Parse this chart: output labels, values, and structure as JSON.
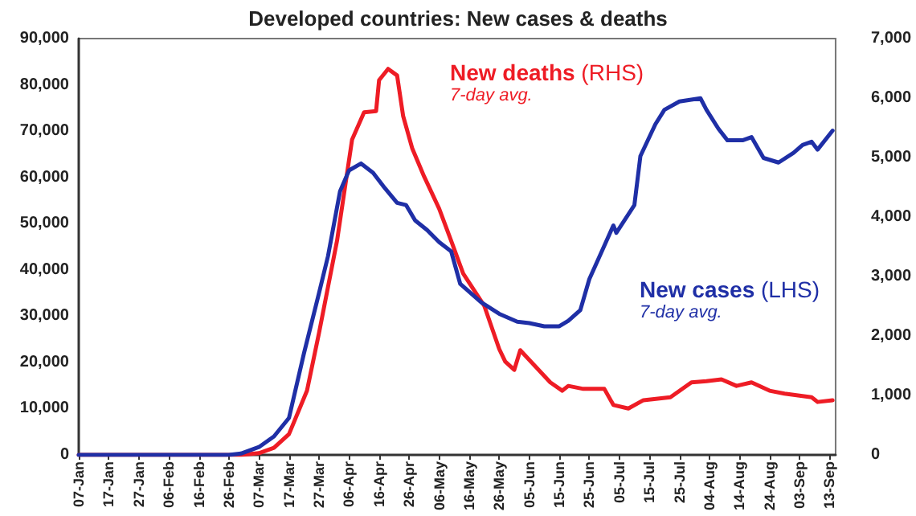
{
  "chart_data": {
    "type": "line",
    "title": "Developed countries: New cases & deaths",
    "annotations": [
      "7-day avg.",
      "7-day avg."
    ],
    "xlim": [
      "--01-07",
      "--09-15"
    ],
    "xticks": [
      {
        "value": "--01-07",
        "label": "07-Jan"
      },
      {
        "value": "--01-17",
        "label": "17-Jan"
      },
      {
        "value": "--01-27",
        "label": "27-Jan"
      },
      {
        "value": "--02-06",
        "label": "06-Feb"
      },
      {
        "value": "--02-16",
        "label": "16-Feb"
      },
      {
        "value": "--02-26",
        "label": "26-Feb"
      },
      {
        "value": "--03-07",
        "label": "07-Mar"
      },
      {
        "value": "--03-17",
        "label": "17-Mar"
      },
      {
        "value": "--03-27",
        "label": "27-Mar"
      },
      {
        "value": "--04-06",
        "label": "06-Apr"
      },
      {
        "value": "--04-16",
        "label": "16-Apr"
      },
      {
        "value": "--04-26",
        "label": "26-Apr"
      },
      {
        "value": "--05-06",
        "label": "06-May"
      },
      {
        "value": "--05-16",
        "label": "16-May"
      },
      {
        "value": "--05-26",
        "label": "26-May"
      },
      {
        "value": "--06-05",
        "label": "05-Jun"
      },
      {
        "value": "--06-15",
        "label": "15-Jun"
      },
      {
        "value": "--06-25",
        "label": "25-Jun"
      },
      {
        "value": "--07-05",
        "label": "05-Jul"
      },
      {
        "value": "--07-15",
        "label": "15-Jul"
      },
      {
        "value": "--07-25",
        "label": "25-Jul"
      },
      {
        "value": "--08-04",
        "label": "04-Aug"
      },
      {
        "value": "--08-14",
        "label": "14-Aug"
      },
      {
        "value": "--08-24",
        "label": "24-Aug"
      },
      {
        "value": "--09-03",
        "label": "03-Sep"
      },
      {
        "value": "--09-13",
        "label": "13-Sep"
      }
    ],
    "ylim": [
      0,
      90000
    ],
    "yticks": [
      {
        "value": 0,
        "label": "0"
      },
      {
        "value": 10000,
        "label": "10,000"
      },
      {
        "value": 20000,
        "label": "20,000"
      },
      {
        "value": 30000,
        "label": "30,000"
      },
      {
        "value": 40000,
        "label": "40,000"
      },
      {
        "value": 50000,
        "label": "50,000"
      },
      {
        "value": 60000,
        "label": "60,000"
      },
      {
        "value": 70000,
        "label": "70,000"
      },
      {
        "value": 80000,
        "label": "80,000"
      },
      {
        "value": 90000,
        "label": "90,000"
      }
    ],
    "y2lim": [
      0,
      7000
    ],
    "y2ticks": [
      {
        "value": 0,
        "label": "0"
      },
      {
        "value": 1000,
        "label": "1,000"
      },
      {
        "value": 2000,
        "label": "2,000"
      },
      {
        "value": 3000,
        "label": "3,000"
      },
      {
        "value": 4000,
        "label": "4,000"
      },
      {
        "value": 5000,
        "label": "5,000"
      },
      {
        "value": 6000,
        "label": "6,000"
      },
      {
        "value": 7000,
        "label": "7,000"
      }
    ],
    "grid": false,
    "legend": false,
    "marker": "none",
    "line_style": "solid",
    "series": [
      {
        "name": "New deaths (RHS)",
        "color": "#ee1c25",
        "axis": "y2",
        "x": [
          "--01-07",
          "--03-01",
          "--03-07",
          "--03-12",
          "--03-17",
          "--03-23",
          "--03-27",
          "--04-02",
          "--04-07",
          "--04-11",
          "--04-15",
          "--04-16",
          "--04-19",
          "--04-22",
          "--04-24",
          "--04-27",
          "--05-01",
          "--05-06",
          "--05-10",
          "--05-14",
          "--05-21",
          "--05-26",
          "--05-28",
          "--05-31",
          "--06-02",
          "--06-07",
          "--06-12",
          "--06-16",
          "--06-18",
          "--06-23",
          "--06-30",
          "--07-03",
          "--07-08",
          "--07-13",
          "--07-22",
          "--07-29",
          "--08-03",
          "--08-08",
          "--08-13",
          "--08-18",
          "--08-24",
          "--08-29",
          "--09-07",
          "--09-09",
          "--09-14"
        ],
        "values": [
          0,
          0,
          30,
          120,
          350,
          1080,
          2050,
          3600,
          5300,
          5760,
          5780,
          6300,
          6490,
          6380,
          5700,
          5160,
          4680,
          4140,
          3600,
          3050,
          2510,
          1780,
          1570,
          1430,
          1760,
          1490,
          1220,
          1080,
          1160,
          1110,
          1110,
          840,
          780,
          920,
          970,
          1220,
          1240,
          1270,
          1160,
          1220,
          1080,
          1030,
          970,
          890,
          920
        ]
      },
      {
        "name": "New cases (LHS)",
        "color": "#1f2fa6",
        "x": [
          "--01-07",
          "--02-26",
          "--03-01",
          "--03-07",
          "--03-12",
          "--03-17",
          "--03-22",
          "--03-27",
          "--03-30",
          "--04-03",
          "--04-06",
          "--04-10",
          "--04-14",
          "--04-18",
          "--04-22",
          "--04-25",
          "--04-28",
          "--05-02",
          "--05-06",
          "--05-10",
          "--05-13",
          "--05-20",
          "--05-26",
          "--06-01",
          "--06-05",
          "--06-10",
          "--06-15",
          "--06-18",
          "--06-22",
          "--06-25",
          "--06-29",
          "--07-03",
          "--07-04",
          "--07-10",
          "--07-12",
          "--07-17",
          "--07-20",
          "--07-25",
          "--08-01",
          "--08-03",
          "--08-07",
          "--08-10",
          "--08-15",
          "--08-18",
          "--08-22",
          "--08-27",
          "--09-01",
          "--09-04",
          "--09-07",
          "--09-09",
          "--09-14"
        ],
        "values": [
          0,
          0,
          300,
          1700,
          4000,
          8000,
          22000,
          35000,
          43000,
          57000,
          61500,
          63000,
          61000,
          57600,
          54500,
          54000,
          50700,
          48600,
          46000,
          44000,
          37000,
          33000,
          30500,
          28800,
          28500,
          27800,
          27800,
          29000,
          31300,
          38000,
          43800,
          49600,
          48000,
          54000,
          64600,
          71500,
          74600,
          76400,
          77100,
          74600,
          70500,
          68000,
          68000,
          68700,
          64200,
          63200,
          65300,
          67000,
          67700,
          66000,
          70100
        ]
      }
    ]
  }
}
